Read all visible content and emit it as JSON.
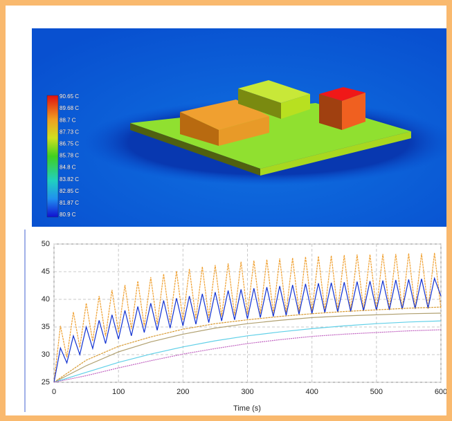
{
  "thermal_view": {
    "colorbar_labels": [
      "90.65 C",
      "89.68 C",
      "88.7 C",
      "87.73 C",
      "86.75 C",
      "85.78 C",
      "84.8 C",
      "83.82 C",
      "82.85 C",
      "81.87 C",
      "80.9 C"
    ]
  },
  "chart_data": {
    "type": "line",
    "x_label": "Time (s)",
    "xlim": [
      0,
      600
    ],
    "xticks": [
      0,
      100,
      200,
      300,
      400,
      500,
      600
    ],
    "ylim": [
      25,
      50
    ],
    "yticks": [
      25,
      30,
      35,
      40,
      45,
      50
    ],
    "grid": true,
    "series": [
      {
        "color": "#f0a030",
        "x": [
          0,
          10,
          20,
          30,
          40,
          50,
          60,
          70,
          80,
          90,
          100,
          110,
          120,
          130,
          140,
          150,
          160,
          170,
          180,
          190,
          200,
          210,
          220,
          230,
          240,
          250,
          260,
          270,
          280,
          290,
          300,
          310,
          320,
          330,
          340,
          350,
          360,
          370,
          380,
          390,
          400,
          410,
          420,
          430,
          440,
          450,
          460,
          470,
          480,
          490,
          500,
          510,
          520,
          530,
          540,
          550,
          560,
          570,
          580,
          590,
          600
        ],
        "values": [
          25,
          35.2,
          29.5,
          37.7,
          31.3,
          39.3,
          32.4,
          40.6,
          33.3,
          41.7,
          34,
          42.6,
          34.6,
          43.3,
          35.1,
          44,
          35.5,
          44.6,
          35.9,
          45.1,
          36.2,
          45.5,
          36.5,
          45.9,
          36.7,
          46.2,
          36.9,
          46.5,
          37.1,
          46.8,
          37.3,
          47,
          37.4,
          47.2,
          37.5,
          47.4,
          37.6,
          47.5,
          37.7,
          47.7,
          37.8,
          47.8,
          37.9,
          47.9,
          38,
          48,
          38,
          48.1,
          38.1,
          48.1,
          38.1,
          48.2,
          38.2,
          48.2,
          38.2,
          48.3,
          38.3,
          48.3,
          38.3,
          48.4,
          38.3
        ]
      },
      {
        "color": "#1030d0",
        "x": [
          0,
          10,
          20,
          30,
          40,
          50,
          60,
          70,
          80,
          90,
          100,
          110,
          120,
          130,
          140,
          150,
          160,
          170,
          180,
          190,
          200,
          210,
          220,
          230,
          240,
          250,
          260,
          270,
          280,
          290,
          300,
          310,
          320,
          330,
          340,
          350,
          360,
          370,
          380,
          390,
          400,
          410,
          420,
          430,
          440,
          450,
          460,
          470,
          480,
          490,
          500,
          510,
          520,
          530,
          540,
          550,
          560,
          570,
          580,
          590,
          600
        ],
        "values": [
          25,
          31.2,
          28.5,
          33.4,
          30,
          35,
          31.1,
          36.2,
          32,
          37.2,
          32.8,
          38,
          33.4,
          38.7,
          34,
          39.3,
          34.4,
          39.8,
          34.8,
          40.2,
          35.2,
          40.6,
          35.5,
          41,
          35.8,
          41.3,
          36.1,
          41.6,
          36.3,
          41.8,
          36.5,
          42,
          36.7,
          42.2,
          36.9,
          42.4,
          37.1,
          42.6,
          37.3,
          42.8,
          37.4,
          42.9,
          37.6,
          43,
          37.7,
          43.1,
          37.8,
          43.2,
          37.9,
          43.3,
          38,
          43.4,
          38.1,
          43.5,
          38.2,
          43.6,
          38.3,
          43.7,
          38.4,
          43.8,
          40.6
        ]
      },
      {
        "color": "#d89a30",
        "x": [
          0,
          50,
          100,
          150,
          200,
          250,
          300,
          350,
          400,
          450,
          500,
          550,
          600
        ],
        "values": [
          25,
          29,
          31.5,
          33.2,
          34.6,
          35.6,
          36.3,
          36.9,
          37.4,
          37.8,
          38.1,
          38.4,
          38.6
        ]
      },
      {
        "color": "#b0a070",
        "x": [
          0,
          50,
          100,
          150,
          200,
          250,
          300,
          350,
          400,
          450,
          500,
          550,
          600
        ],
        "values": [
          25,
          28,
          30.5,
          32.3,
          33.7,
          34.8,
          35.6,
          36.2,
          36.7,
          37,
          37.2,
          37.4,
          37.5
        ]
      },
      {
        "color": "#60d0e8",
        "x": [
          0,
          50,
          100,
          150,
          200,
          250,
          300,
          350,
          400,
          450,
          500,
          550,
          600
        ],
        "values": [
          25,
          26.8,
          28.6,
          30.1,
          31.4,
          32.5,
          33.4,
          34.1,
          34.7,
          35.2,
          35.6,
          35.9,
          36.1
        ]
      },
      {
        "color": "#c060c0",
        "x": [
          0,
          50,
          100,
          150,
          200,
          250,
          300,
          350,
          400,
          450,
          500,
          550,
          600
        ],
        "values": [
          25,
          26.2,
          27.6,
          28.9,
          30.1,
          31.1,
          32,
          32.7,
          33.3,
          33.7,
          34,
          34.3,
          34.5
        ]
      }
    ]
  }
}
